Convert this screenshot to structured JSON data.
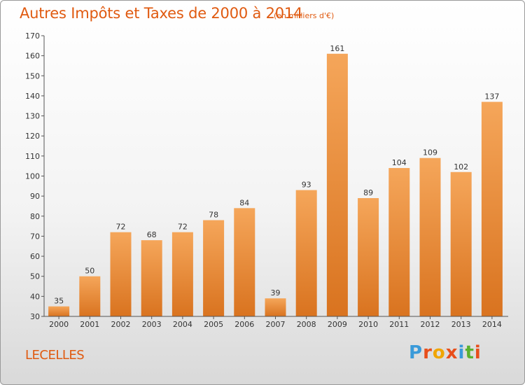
{
  "header": {
    "title": "Autres Impôts et Taxes de 2000 à 2014",
    "subtitle": "(en milliers d'€)"
  },
  "footer": {
    "city": "LECELLES",
    "brand": [
      "P",
      "r",
      "o",
      "x",
      "i",
      "t",
      "i"
    ]
  },
  "colors": {
    "accent": "#e05a10",
    "bar_light": "#f5a65a",
    "bar_dark": "#d9731f",
    "brand_letters": [
      "#3a9ad9",
      "#e84e1b",
      "#f0a500",
      "#e84e1b",
      "#3a9ad9",
      "#5bb12f",
      "#e84e1b"
    ]
  },
  "chart_data": {
    "type": "bar",
    "categories": [
      "2000",
      "2001",
      "2002",
      "2003",
      "2004",
      "2005",
      "2006",
      "2007",
      "2008",
      "2009",
      "2010",
      "2011",
      "2012",
      "2013",
      "2014"
    ],
    "values": [
      35,
      50,
      72,
      68,
      72,
      78,
      84,
      39,
      93,
      161,
      89,
      104,
      109,
      102,
      137
    ],
    "ylim": [
      30,
      170
    ],
    "yticks": [
      30,
      40,
      50,
      60,
      70,
      80,
      90,
      100,
      110,
      120,
      130,
      140,
      150,
      160,
      170
    ],
    "grid": false
  }
}
